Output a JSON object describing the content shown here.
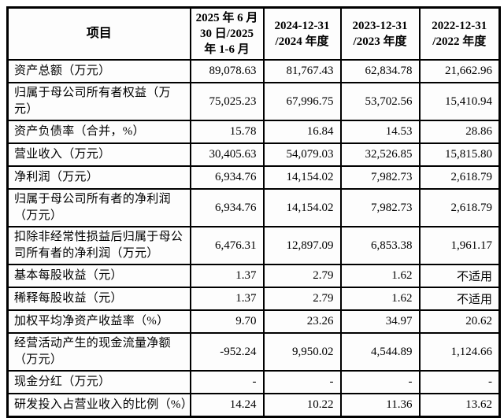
{
  "table": {
    "columns": [
      {
        "label": "项目"
      },
      {
        "label": "2025 年 6 月\n30 日/2025\n年 1-6 月"
      },
      {
        "label": "2024-12-31\n/2024 年度"
      },
      {
        "label": "2023-12-31\n/2023 年度"
      },
      {
        "label": "2022-12-31\n/2022 年度"
      }
    ],
    "rows": [
      {
        "label": "资产总额（万元）",
        "values": [
          "89,078.63",
          "81,767.43",
          "62,834.78",
          "21,662.96"
        ]
      },
      {
        "label": "归属于母公司所有者权益（万元）",
        "values": [
          "75,025.23",
          "67,996.75",
          "53,702.56",
          "15,410.94"
        ]
      },
      {
        "label": "资产负债率（合并，%）",
        "values": [
          "15.78",
          "16.84",
          "14.53",
          "28.86"
        ]
      },
      {
        "label": "营业收入（万元）",
        "values": [
          "30,405.63",
          "54,079.03",
          "32,526.85",
          "15,815.80"
        ]
      },
      {
        "label": "净利润（万元）",
        "values": [
          "6,934.76",
          "14,154.02",
          "7,982.73",
          "2,618.79"
        ]
      },
      {
        "label": "归属于母公司所有者的净利润\n（万元）",
        "values": [
          "6,934.76",
          "14,154.02",
          "7,982.73",
          "2,618.79"
        ]
      },
      {
        "label": "扣除非经常性损益后归属于母公\n司所有者的净利润（万元）",
        "values": [
          "6,476.31",
          "12,897.09",
          "6,853.38",
          "1,961.17"
        ]
      },
      {
        "label": "基本每股收益（元）",
        "values": [
          "1.37",
          "2.79",
          "1.62",
          "不适用"
        ]
      },
      {
        "label": "稀释每股收益（元）",
        "values": [
          "1.37",
          "2.79",
          "1.62",
          "不适用"
        ]
      },
      {
        "label": "加权平均净资产收益率（%）",
        "values": [
          "9.70",
          "23.26",
          "34.97",
          "20.62"
        ]
      },
      {
        "label": "经营活动产生的现金流量净额\n（万元）",
        "values": [
          "-952.24",
          "9,950.02",
          "4,544.89",
          "1,124.66"
        ]
      },
      {
        "label": "现金分红（万元）",
        "values": [
          "-",
          "-",
          "-",
          "-"
        ]
      },
      {
        "label": "研发投入占营业收入的比例（%）",
        "values": [
          "14.24",
          "10.22",
          "11.36",
          "13.62"
        ]
      }
    ],
    "tall_rows": [
      5,
      6,
      10
    ],
    "colors": {
      "border": "#000000",
      "text": "#000000",
      "background": "#ffffff"
    }
  }
}
